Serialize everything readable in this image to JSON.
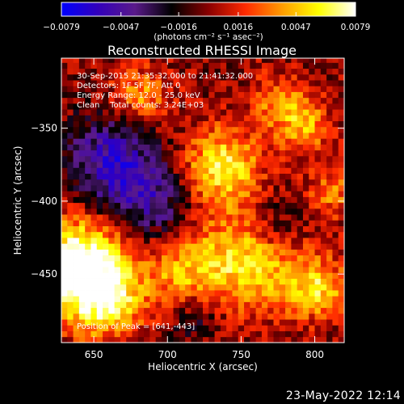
{
  "chart_data": {
    "type": "heatmap",
    "title": "Reconstructed RHESSI Image",
    "xlabel": "Heliocentric X (arcsec)",
    "ylabel": "Heliocentric Y (arcsec)",
    "xlim": [
      628,
      820
    ],
    "ylim": [
      -497,
      -302
    ],
    "x_ticks": [
      650,
      700,
      750,
      800
    ],
    "y_ticks": [
      -350,
      -400,
      -450
    ],
    "colorbar": {
      "range": [
        -0.0079,
        0.0079
      ],
      "ticks": [
        "−0.0079",
        "−0.0047",
        "−0.0016",
        "0.0016",
        "0.0047",
        "0.0079"
      ],
      "unit_label": "(photons cm⁻² s⁻¹ asec⁻²)",
      "colormap": [
        "#0000ff",
        "#3300bb",
        "#5a1a8a",
        "#000000",
        "#8a0000",
        "#ff2a00",
        "#ff9c00",
        "#ffff00",
        "#ffffff"
      ]
    },
    "annotations": {
      "time_range": "30-Sep-2015 21:35:32.000 to 21:41:32.000",
      "detectors": "Detectors: 1F 5F 7F, Att 0",
      "energy": "Energy Range: 12.0 - 25.0 keV",
      "clean": "Clean    Total counts: 3.24E+03",
      "peak": "Position of Peak = [641,-443]"
    },
    "grid": false
  },
  "footer": {
    "date": "23-May-2022 12:14"
  }
}
